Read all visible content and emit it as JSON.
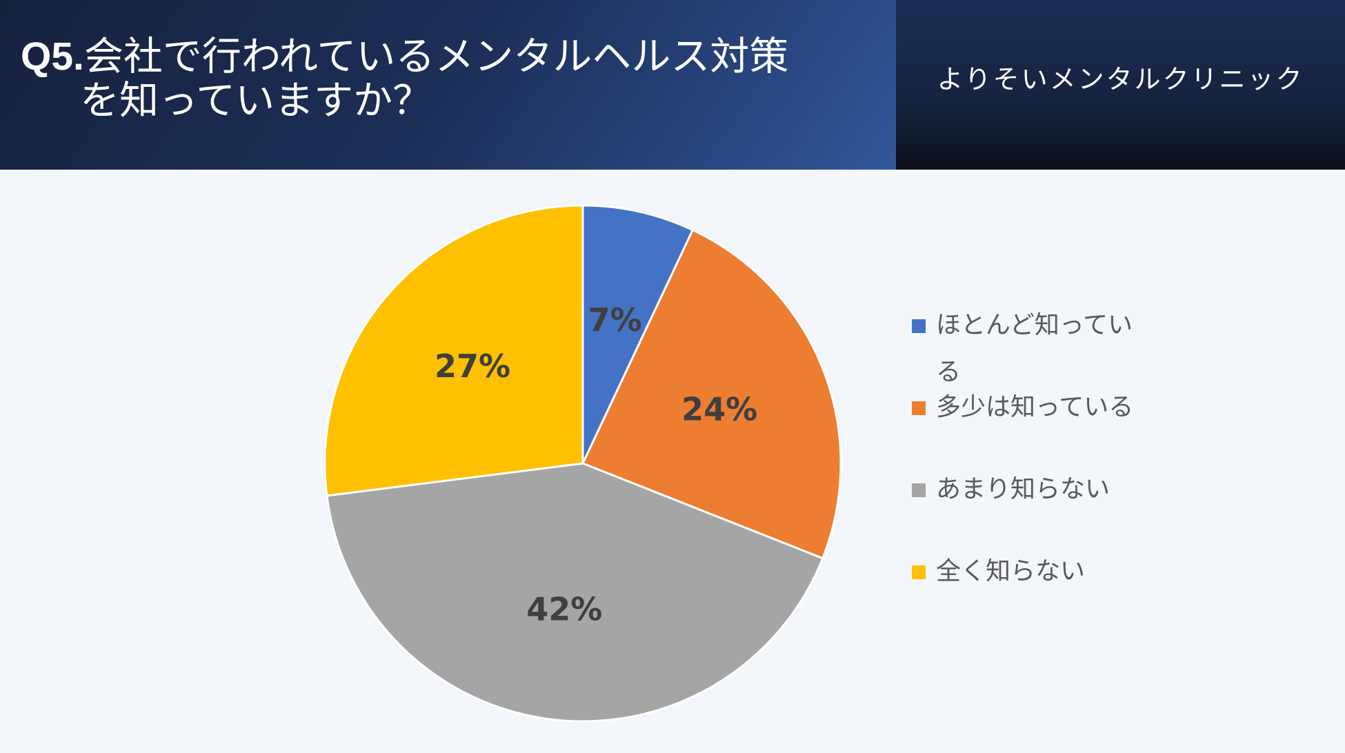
{
  "header": {
    "question_number": "Q5.",
    "question_line1": "会社で行われているメンタルヘルス対策",
    "question_line2": "を知っていますか？",
    "clinic_name": "よりそいメンタルクリニック"
  },
  "colors": {
    "header_dark": "#16213d",
    "background": "#f3f6fa"
  },
  "chart_data": {
    "type": "pie",
    "series": [
      {
        "name": "ほとんど知っている",
        "value": 7,
        "label": "7%",
        "color": "#4472c4"
      },
      {
        "name": "多少は知っている",
        "value": 24,
        "label": "24%",
        "color": "#ed7d31"
      },
      {
        "name": "あまり知らない",
        "value": 42,
        "label": "42%",
        "color": "#a5a5a5"
      },
      {
        "name": "全く知らない",
        "value": 27,
        "label": "27%",
        "color": "#ffc000"
      }
    ],
    "start_angle": "12 o'clock",
    "direction": "clockwise",
    "legend_placement": "right"
  }
}
